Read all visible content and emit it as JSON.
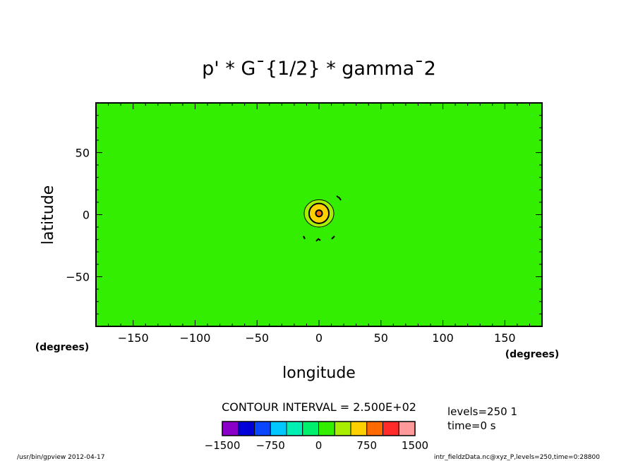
{
  "chart_data": {
    "type": "contour",
    "title": "p' * G¯{1/2} * gamma¯2",
    "xlabel": "longitude",
    "ylabel": "latitude",
    "x_units": "(degrees)",
    "y_units": "(degrees)",
    "xlim": [
      -180,
      180
    ],
    "ylim": [
      -90,
      90
    ],
    "x_ticks": [
      -150,
      -100,
      -50,
      0,
      50,
      100,
      150
    ],
    "y_ticks": [
      50,
      0,
      -50
    ],
    "background_color": "#33ee00",
    "contour_interval_text": "CONTOUR INTERVAL = 2.500E+02",
    "features": [
      {
        "name": "center-outer",
        "x": 0,
        "y": 1,
        "rx": 12,
        "ry": 11,
        "color": "#a8ee00"
      },
      {
        "name": "center-mid",
        "x": 0,
        "y": 1,
        "rx": 8,
        "ry": 8,
        "color": "#ffd000"
      },
      {
        "name": "center-core",
        "x": 0,
        "y": 1,
        "rx": 2.6,
        "ry": 2.6,
        "color": "#ff6a00"
      }
    ],
    "colorbar": {
      "colors": [
        "#8a00c8",
        "#0000d8",
        "#0a46ff",
        "#00c8ff",
        "#00f0b4",
        "#00f06e",
        "#33ee00",
        "#a8ee00",
        "#ffd000",
        "#ff6a00",
        "#ff2a2a",
        "#ff9a9a"
      ],
      "tick_labels": [
        "−1500",
        "−750",
        "0",
        "750",
        "1500"
      ],
      "range": [
        -1500,
        1500
      ]
    }
  },
  "info": {
    "levels": "levels=250  1",
    "time": "time=0  s",
    "footer_left": "/usr/bin/gpview   2012-04-17",
    "footer_right": "intr_fieldzData.nc@xyz_P,levels=250,time=0:28800"
  }
}
